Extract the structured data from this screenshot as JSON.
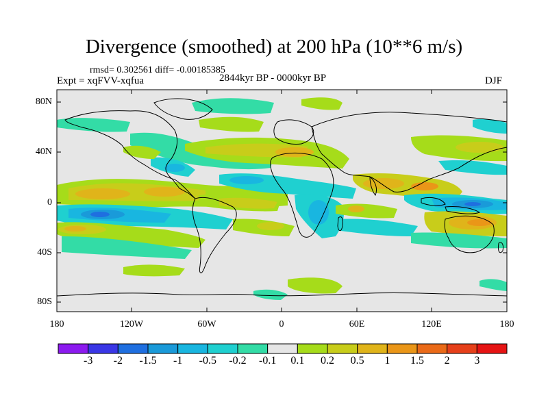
{
  "title": "Divergence (smoothed) at 200 hPa (10**6 m/s)",
  "stats": "rmsd= 0.302561 diff= -0.00185385",
  "experiment": "Expt = xqFVV-xqfua",
  "period": "2844kyr BP - 0000kyr BP",
  "season": "DJF",
  "y_axis_labels": [
    "80N",
    "40N",
    "0",
    "40S",
    "80S"
  ],
  "x_axis_labels": [
    "180",
    "120W",
    "60W",
    "0",
    "60E",
    "120E",
    "180"
  ],
  "colorbar": {
    "labels": [
      "-3",
      "-2",
      "-1.5",
      "-1",
      "-0.5",
      "-0.2",
      "-0.1",
      "0.1",
      "0.2",
      "0.5",
      "1",
      "1.5",
      "2",
      "3"
    ],
    "colors": [
      "#8c1aef",
      "#3a37e6",
      "#1f6fe0",
      "#1a9ad9",
      "#19b6e0",
      "#1fd0d0",
      "#33dca6",
      "#e6e6e6",
      "#a6dc1a",
      "#c8cd1a",
      "#e0b41a",
      "#ea9618",
      "#ea6a18",
      "#e6401a",
      "#e61414"
    ]
  },
  "colors": {
    "land_outline": "#000000",
    "background_field": "#e6e6e6"
  }
}
